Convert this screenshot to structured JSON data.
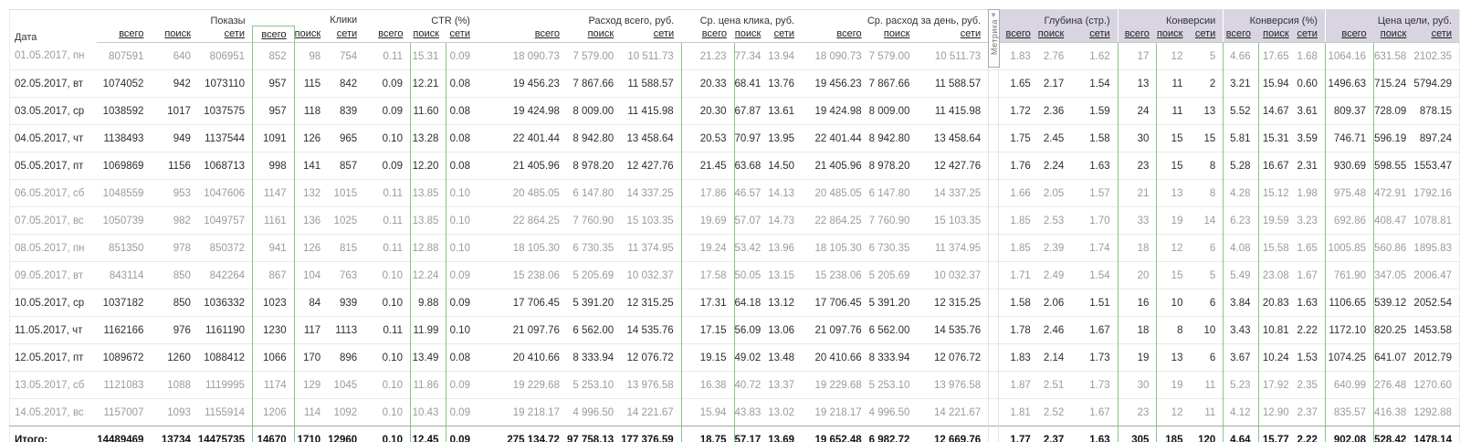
{
  "colors": {
    "highlight_border": "#84c784",
    "metrika_header_bg": "#d8d4e1",
    "muted_text": "#9b9b9b",
    "text": "#2e2e2e"
  },
  "metrika_tab": {
    "label": "Метрика",
    "icon": "»"
  },
  "table": {
    "date_header": "Дата",
    "total_label": "Итого:",
    "sub_headers": [
      "всего",
      "поиск",
      "сети"
    ],
    "groups": [
      {
        "label": "Показы"
      },
      {
        "label": "Клики"
      },
      {
        "label": "CTR (%)"
      },
      {
        "label": "Расход всего, руб."
      },
      {
        "label": "Ср. цена клика, руб."
      },
      {
        "label": "Ср. расход за день, руб."
      },
      {
        "label": "Глубина (стр.)"
      },
      {
        "label": "Конверсии"
      },
      {
        "label": "Конверсия (%)"
      },
      {
        "label": "Цена цели, руб."
      }
    ],
    "highlighted_metrics": [
      "clicks_total",
      "ctr_search",
      "avg_cpc_total",
      "conversions_total",
      "conversion_rate_total",
      "goal_price_total"
    ],
    "rows": [
      {
        "date": "01.05.2017, пн",
        "muted": true,
        "values": [
          "807591",
          "640",
          "806951",
          "852",
          "98",
          "754",
          "0.11",
          "15.31",
          "0.09",
          "18 090.73",
          "7 579.00",
          "10 511.73",
          "21.23",
          "77.34",
          "13.94",
          "18 090.73",
          "7 579.00",
          "10 511.73",
          "1.83",
          "2.76",
          "1.62",
          "17",
          "12",
          "5",
          "4.66",
          "17.65",
          "1.68",
          "1064.16",
          "631.58",
          "2102.35"
        ]
      },
      {
        "date": "02.05.2017, вт",
        "muted": false,
        "values": [
          "1074052",
          "942",
          "1073110",
          "957",
          "115",
          "842",
          "0.09",
          "12.21",
          "0.08",
          "19 456.23",
          "7 867.66",
          "11 588.57",
          "20.33",
          "68.41",
          "13.76",
          "19 456.23",
          "7 867.66",
          "11 588.57",
          "1.65",
          "2.17",
          "1.54",
          "13",
          "11",
          "2",
          "3.21",
          "15.94",
          "0.60",
          "1496.63",
          "715.24",
          "5794.29"
        ]
      },
      {
        "date": "03.05.2017, ср",
        "muted": false,
        "values": [
          "1038592",
          "1017",
          "1037575",
          "957",
          "118",
          "839",
          "0.09",
          "11.60",
          "0.08",
          "19 424.98",
          "8 009.00",
          "11 415.98",
          "20.30",
          "67.87",
          "13.61",
          "19 424.98",
          "8 009.00",
          "11 415.98",
          "1.72",
          "2.36",
          "1.59",
          "24",
          "11",
          "13",
          "5.52",
          "14.67",
          "3.61",
          "809.37",
          "728.09",
          "878.15"
        ]
      },
      {
        "date": "04.05.2017, чт",
        "muted": false,
        "values": [
          "1138493",
          "949",
          "1137544",
          "1091",
          "126",
          "965",
          "0.10",
          "13.28",
          "0.08",
          "22 401.44",
          "8 942.80",
          "13 458.64",
          "20.53",
          "70.97",
          "13.95",
          "22 401.44",
          "8 942.80",
          "13 458.64",
          "1.75",
          "2.45",
          "1.58",
          "30",
          "15",
          "15",
          "5.81",
          "15.31",
          "3.59",
          "746.71",
          "596.19",
          "897.24"
        ]
      },
      {
        "date": "05.05.2017, пт",
        "muted": false,
        "values": [
          "1069869",
          "1156",
          "1068713",
          "998",
          "141",
          "857",
          "0.09",
          "12.20",
          "0.08",
          "21 405.96",
          "8 978.20",
          "12 427.76",
          "21.45",
          "63.68",
          "14.50",
          "21 405.96",
          "8 978.20",
          "12 427.76",
          "1.76",
          "2.24",
          "1.63",
          "23",
          "15",
          "8",
          "5.28",
          "16.67",
          "2.31",
          "930.69",
          "598.55",
          "1553.47"
        ]
      },
      {
        "date": "06.05.2017, сб",
        "muted": true,
        "values": [
          "1048559",
          "953",
          "1047606",
          "1147",
          "132",
          "1015",
          "0.11",
          "13.85",
          "0.10",
          "20 485.05",
          "6 147.80",
          "14 337.25",
          "17.86",
          "46.57",
          "14.13",
          "20 485.05",
          "6 147.80",
          "14 337.25",
          "1.66",
          "2.05",
          "1.57",
          "21",
          "13",
          "8",
          "4.28",
          "15.12",
          "1.98",
          "975.48",
          "472.91",
          "1792.16"
        ]
      },
      {
        "date": "07.05.2017, вс",
        "muted": true,
        "values": [
          "1050739",
          "982",
          "1049757",
          "1161",
          "136",
          "1025",
          "0.11",
          "13.85",
          "0.10",
          "22 864.25",
          "7 760.90",
          "15 103.35",
          "19.69",
          "57.07",
          "14.73",
          "22 864.25",
          "7 760.90",
          "15 103.35",
          "1.85",
          "2.53",
          "1.70",
          "33",
          "19",
          "14",
          "6.23",
          "19.59",
          "3.23",
          "692.86",
          "408.47",
          "1078.81"
        ]
      },
      {
        "date": "08.05.2017, пн",
        "muted": true,
        "values": [
          "851350",
          "978",
          "850372",
          "941",
          "126",
          "815",
          "0.11",
          "12.88",
          "0.10",
          "18 105.30",
          "6 730.35",
          "11 374.95",
          "19.24",
          "53.42",
          "13.96",
          "18 105.30",
          "6 730.35",
          "11 374.95",
          "1.85",
          "2.39",
          "1.74",
          "18",
          "12",
          "6",
          "4.08",
          "15.58",
          "1.65",
          "1005.85",
          "560.86",
          "1895.83"
        ]
      },
      {
        "date": "09.05.2017, вт",
        "muted": true,
        "values": [
          "843114",
          "850",
          "842264",
          "867",
          "104",
          "763",
          "0.10",
          "12.24",
          "0.09",
          "15 238.06",
          "5 205.69",
          "10 032.37",
          "17.58",
          "50.05",
          "13.15",
          "15 238.06",
          "5 205.69",
          "10 032.37",
          "1.71",
          "2.49",
          "1.54",
          "20",
          "15",
          "5",
          "5.49",
          "23.08",
          "1.67",
          "761.90",
          "347.05",
          "2006.47"
        ]
      },
      {
        "date": "10.05.2017, ср",
        "muted": false,
        "values": [
          "1037182",
          "850",
          "1036332",
          "1023",
          "84",
          "939",
          "0.10",
          "9.88",
          "0.09",
          "17 706.45",
          "5 391.20",
          "12 315.25",
          "17.31",
          "64.18",
          "13.12",
          "17 706.45",
          "5 391.20",
          "12 315.25",
          "1.58",
          "2.06",
          "1.51",
          "16",
          "10",
          "6",
          "3.84",
          "20.83",
          "1.63",
          "1106.65",
          "539.12",
          "2052.54"
        ]
      },
      {
        "date": "11.05.2017, чт",
        "muted": false,
        "values": [
          "1162166",
          "976",
          "1161190",
          "1230",
          "117",
          "1113",
          "0.11",
          "11.99",
          "0.10",
          "21 097.76",
          "6 562.00",
          "14 535.76",
          "17.15",
          "56.09",
          "13.06",
          "21 097.76",
          "6 562.00",
          "14 535.76",
          "1.78",
          "2.46",
          "1.67",
          "18",
          "8",
          "10",
          "3.43",
          "10.81",
          "2.22",
          "1172.10",
          "820.25",
          "1453.58"
        ]
      },
      {
        "date": "12.05.2017, пт",
        "muted": false,
        "values": [
          "1089672",
          "1260",
          "1088412",
          "1066",
          "170",
          "896",
          "0.10",
          "13.49",
          "0.08",
          "20 410.66",
          "8 333.94",
          "12 076.72",
          "19.15",
          "49.02",
          "13.48",
          "20 410.66",
          "8 333.94",
          "12 076.72",
          "1.83",
          "2.14",
          "1.73",
          "19",
          "13",
          "6",
          "3.67",
          "10.24",
          "1.53",
          "1074.25",
          "641.07",
          "2012.79"
        ]
      },
      {
        "date": "13.05.2017, сб",
        "muted": true,
        "values": [
          "1121083",
          "1088",
          "1119995",
          "1174",
          "129",
          "1045",
          "0.10",
          "11.86",
          "0.09",
          "19 229.68",
          "5 253.10",
          "13 976.58",
          "16.38",
          "40.72",
          "13.37",
          "19 229.68",
          "5 253.10",
          "13 976.58",
          "1.87",
          "2.51",
          "1.73",
          "30",
          "19",
          "11",
          "5.23",
          "17.92",
          "2.35",
          "640.99",
          "276.48",
          "1270.60"
        ]
      },
      {
        "date": "14.05.2017, вс",
        "muted": true,
        "values": [
          "1157007",
          "1093",
          "1155914",
          "1206",
          "114",
          "1092",
          "0.10",
          "10.43",
          "0.09",
          "19 218.17",
          "4 996.50",
          "14 221.67",
          "15.94",
          "43.83",
          "13.02",
          "19 218.17",
          "4 996.50",
          "14 221.67",
          "1.81",
          "2.52",
          "1.67",
          "23",
          "12",
          "11",
          "4.12",
          "12.90",
          "2.37",
          "835.57",
          "416.38",
          "1292.88"
        ]
      }
    ],
    "total_row": {
      "values": [
        "14489469",
        "13734",
        "14475735",
        "14670",
        "1710",
        "12960",
        "0.10",
        "12.45",
        "0.09",
        "275 134.72",
        "97 758.13",
        "177 376.59",
        "18.75",
        "57.17",
        "13.69",
        "19 652.48",
        "6 982.72",
        "12 669.76",
        "1.77",
        "2.37",
        "1.63",
        "305",
        "185",
        "120",
        "4.64",
        "15.77",
        "2.22",
        "902.08",
        "528.42",
        "1478.14"
      ]
    }
  }
}
